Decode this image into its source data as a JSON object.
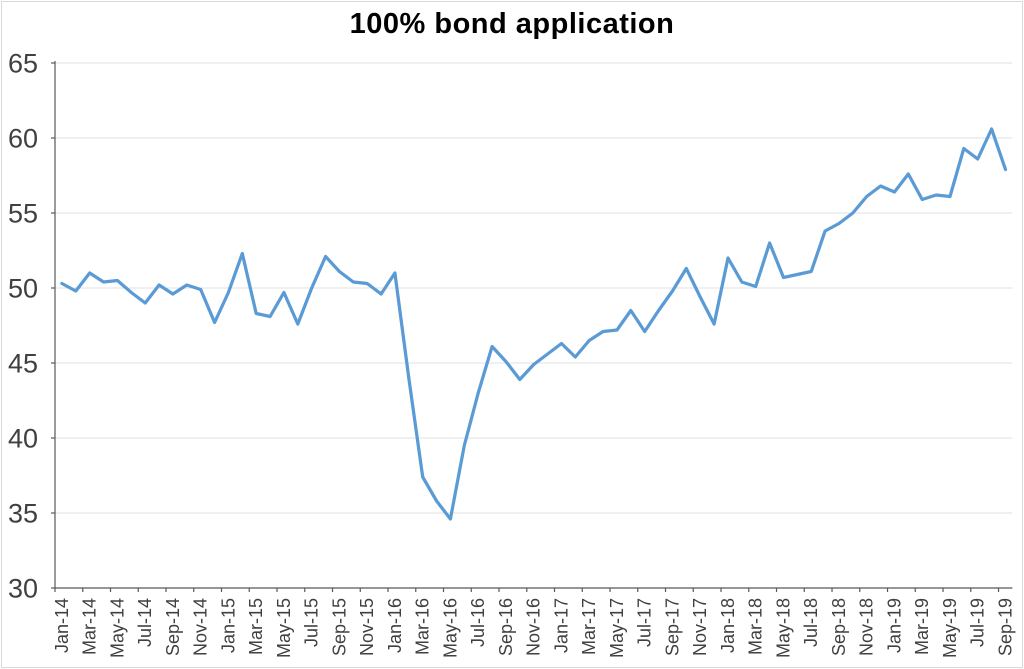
{
  "chart_data": {
    "type": "line",
    "title": "100% bond application",
    "x_first": "Jan-14",
    "x_last": "Sep-19",
    "n_points": 69,
    "xtick_interval_months": 2,
    "xtick_labels": [
      "Jan-14",
      "Mar-14",
      "May-14",
      "Jul-14",
      "Sep-14",
      "Nov-14",
      "Jan-15",
      "Mar-15",
      "May-15",
      "Jul-15",
      "Sep-15",
      "Nov-15",
      "Jan-16",
      "Mar-16",
      "May-16",
      "Jul-16",
      "Sep-16",
      "Nov-16",
      "Jan-17",
      "Mar-17",
      "May-17",
      "Jul-17",
      "Sep-17",
      "Nov-17",
      "Jan-18",
      "Mar-18",
      "May-18",
      "Jul-18",
      "Sep-18",
      "Nov-18",
      "Jan-19",
      "Mar-19",
      "May-19",
      "Jul-19",
      "Sep-19"
    ],
    "ytick_labels": [
      "65",
      "60",
      "55",
      "50",
      "45",
      "40",
      "35",
      "30"
    ],
    "ylim": [
      30,
      65
    ],
    "grid": "horizontal",
    "legend": "none",
    "series_name": "100% bond application",
    "values": [
      50.3,
      49.8,
      51.0,
      50.4,
      50.5,
      49.7,
      49.0,
      50.2,
      49.6,
      50.2,
      49.9,
      47.7,
      49.7,
      52.3,
      48.3,
      48.1,
      49.7,
      47.6,
      50.0,
      52.1,
      51.1,
      50.4,
      50.3,
      49.6,
      51.0,
      44.0,
      37.4,
      35.8,
      34.6,
      39.5,
      43.0,
      46.1,
      45.1,
      43.9,
      44.9,
      45.6,
      46.3,
      45.4,
      46.5,
      47.1,
      47.2,
      48.5,
      47.1,
      48.5,
      49.8,
      51.3,
      49.4,
      47.6,
      52.0,
      50.4,
      50.1,
      53.0,
      50.7,
      50.9,
      51.1,
      53.8,
      54.3,
      55.0,
      56.1,
      56.8,
      56.4,
      57.6,
      55.9,
      56.2,
      56.1,
      59.3,
      58.6,
      60.6,
      57.9
    ]
  },
  "colors": {
    "line": "#5B9BD5",
    "gridline": "#E2E2E2",
    "axis": "#595959",
    "tick_label": "#404040",
    "title": "#000000",
    "border": "#D9D9D9",
    "background": "#FFFFFF"
  }
}
